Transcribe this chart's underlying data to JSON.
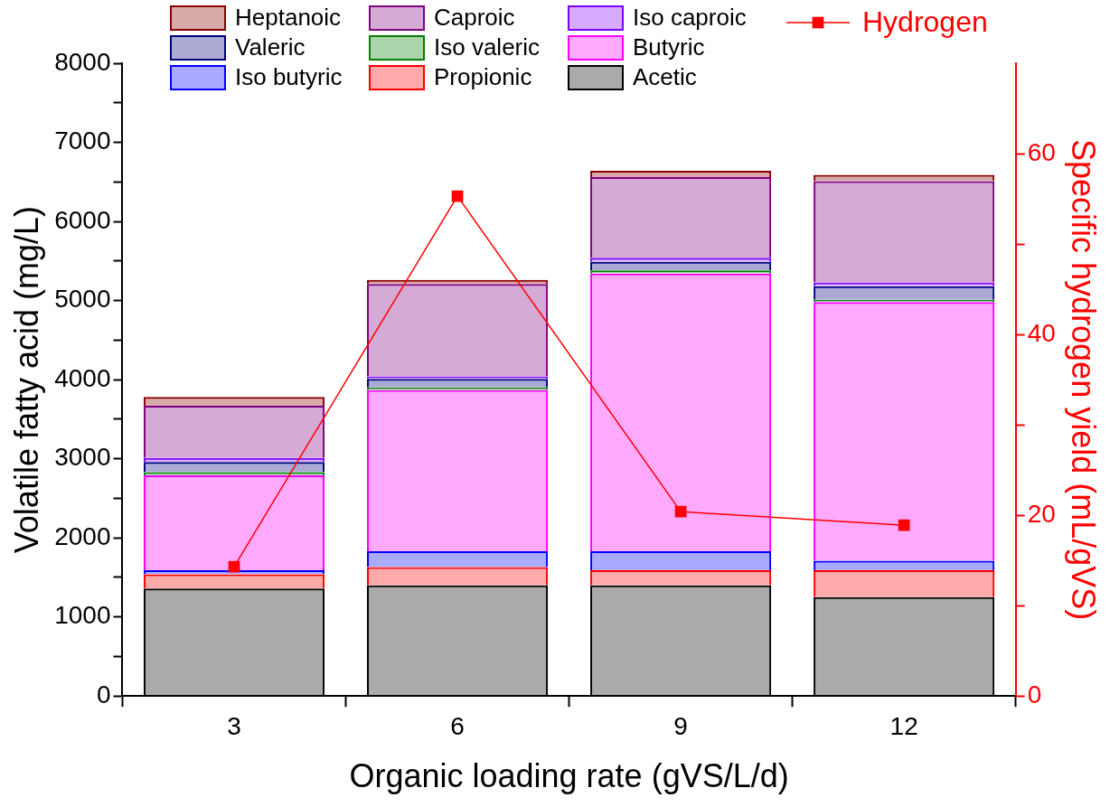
{
  "chart_data": {
    "type": "bar",
    "stacked": true,
    "xlabel": "Organic loading rate (gVS/L/d)",
    "ylabel": "Volatile fatty acid (mg/L)",
    "y2label": "Specific hydrogen yield (mL/gVS)",
    "categories": [
      "3",
      "6",
      "9",
      "12"
    ],
    "series": [
      {
        "name": "Acetic",
        "color": "#000000",
        "values": [
          1360,
          1400,
          1400,
          1250
        ]
      },
      {
        "name": "Propionic",
        "color": "#ff0000",
        "values": [
          180,
          230,
          190,
          340
        ]
      },
      {
        "name": "Iso butyric",
        "color": "#0000ff",
        "values": [
          50,
          200,
          240,
          120
        ]
      },
      {
        "name": "Butyric",
        "color": "#ff00ff",
        "values": [
          1200,
          2040,
          3510,
          3270
        ]
      },
      {
        "name": "Iso valeric",
        "color": "#008000",
        "values": [
          40,
          30,
          40,
          30
        ]
      },
      {
        "name": "Valeric",
        "color": "#000080",
        "values": [
          130,
          110,
          110,
          170
        ]
      },
      {
        "name": "Iso caproic",
        "color": "#8000ff",
        "values": [
          50,
          30,
          50,
          50
        ]
      },
      {
        "name": "Caproic",
        "color": "#800080",
        "values": [
          660,
          1170,
          1020,
          1280
        ]
      },
      {
        "name": "Heptanoic",
        "color": "#8b0000",
        "values": [
          110,
          50,
          80,
          80
        ]
      },
      {
        "name": "Hydrogen",
        "type": "line",
        "axis": "y2",
        "marker": "square",
        "color": "#ff0000",
        "values": [
          14.3,
          55.3,
          20.4,
          18.9
        ]
      }
    ],
    "ylim": [
      0,
      8000
    ],
    "yticks": [
      0,
      {
        "value": 500,
        "label": null
      },
      1000,
      {
        "value": 1500,
        "label": null
      },
      2000,
      {
        "value": 2500,
        "label": null
      },
      3000,
      {
        "value": 3500,
        "label": null
      },
      4000,
      {
        "value": 4500,
        "label": null
      },
      5000,
      {
        "value": 5500,
        "label": null
      },
      6000,
      {
        "value": 6500,
        "label": null
      },
      7000,
      {
        "value": 7500,
        "label": null
      },
      8000
    ],
    "y2lim": [
      0,
      70
    ],
    "y2ticks": [
      0,
      {
        "value": 10,
        "label": null
      },
      20,
      {
        "value": 30,
        "label": null
      },
      40,
      {
        "value": 50,
        "label": null
      },
      60
    ],
    "grid": false,
    "legend": "top"
  }
}
